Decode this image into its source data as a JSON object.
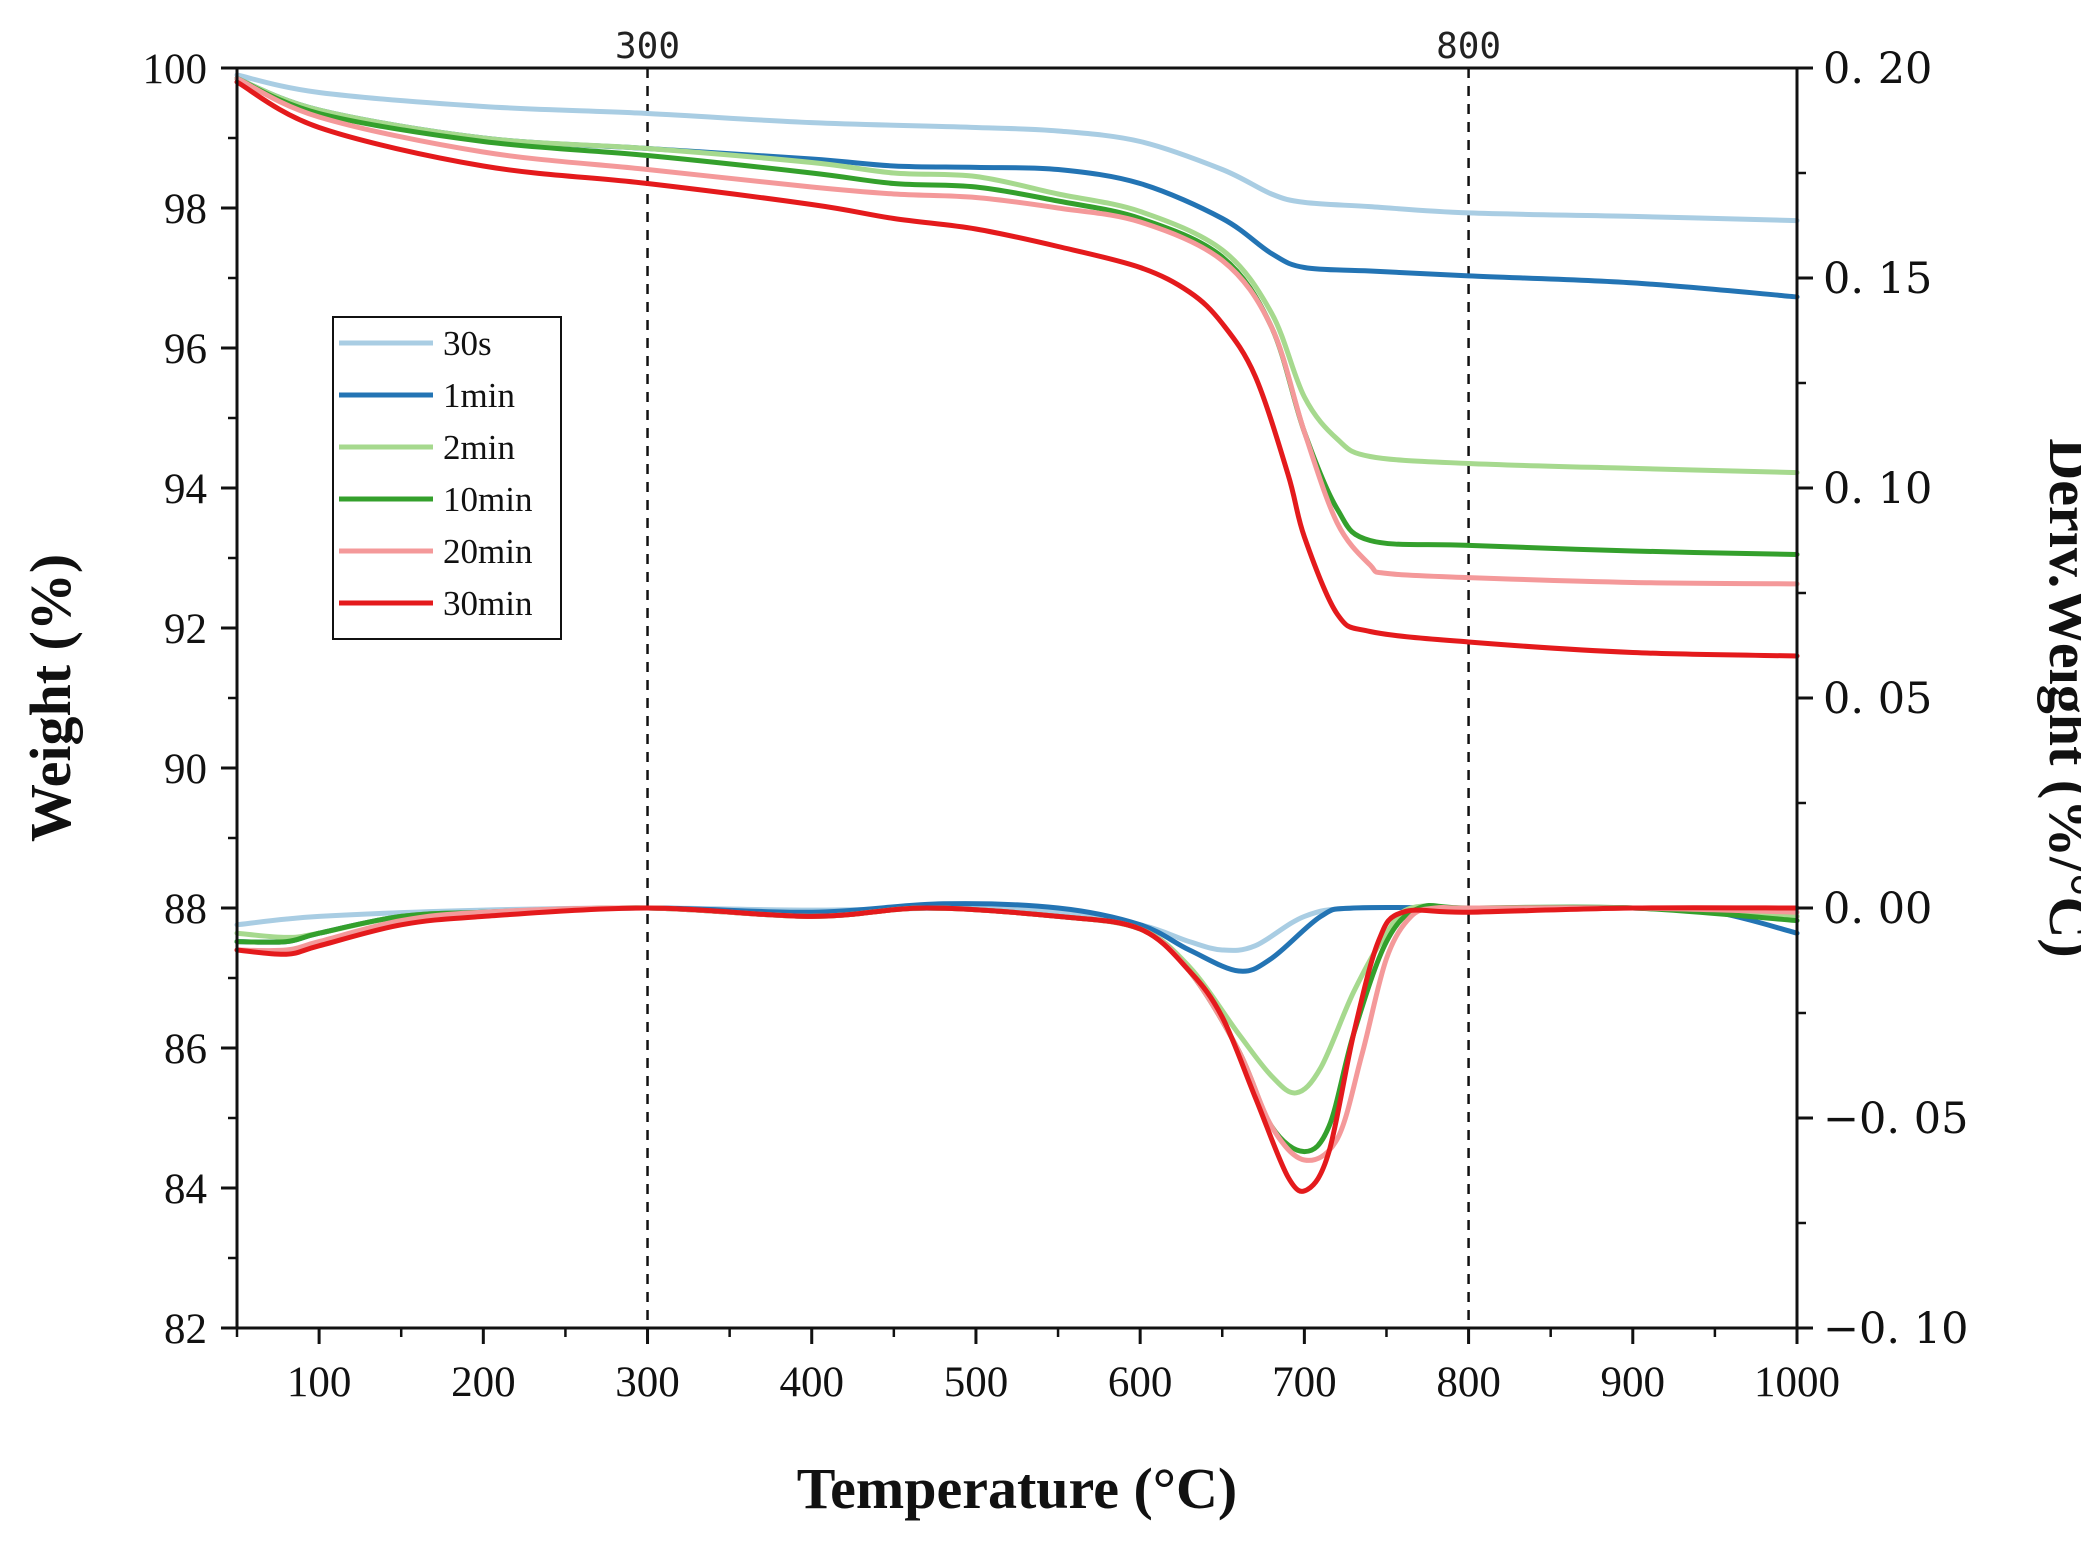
{
  "chart_data": {
    "type": "line",
    "title": "",
    "xlabel": "Temperature (°C)",
    "ylabel": "Weight (%)",
    "y2label": "Deriv.Weight (%/°C)",
    "xlim": [
      50,
      1000
    ],
    "ylim": [
      82,
      100
    ],
    "y2lim": [
      -0.1,
      0.2
    ],
    "x_ticks": [
      100,
      200,
      300,
      400,
      500,
      600,
      700,
      800,
      900,
      1000
    ],
    "x_tick_labels": [
      "100",
      "200",
      "300",
      "400",
      "500",
      "600",
      "700",
      "800",
      "900",
      "1000"
    ],
    "y_ticks": [
      82,
      84,
      86,
      88,
      90,
      92,
      94,
      96,
      98,
      100
    ],
    "y_tick_labels": [
      "82",
      "84",
      "86",
      "88",
      "90",
      "92",
      "94",
      "96",
      "98",
      "100"
    ],
    "y2_ticks": [
      -0.1,
      -0.05,
      0.0,
      0.05,
      0.1,
      0.15,
      0.2
    ],
    "y2_tick_labels": [
      "−0. 10",
      "−0. 05",
      "0. 00",
      "0. 05",
      "0. 10",
      "0. 15",
      "0. 20"
    ],
    "reference_lines": [
      {
        "x": 300,
        "label": "300",
        "style": "dashed"
      },
      {
        "x": 800,
        "label": "800",
        "style": "dashed"
      }
    ],
    "legend": {
      "position": "upper-left",
      "entries": [
        "30s",
        "1min",
        "2min",
        "10min",
        "20min",
        "30min"
      ]
    },
    "series": [
      {
        "name": "30s",
        "color": "#a9cde3",
        "weight": {
          "x": [
            50,
            100,
            200,
            300,
            400,
            500,
            550,
            600,
            650,
            680,
            700,
            740,
            800,
            900,
            1000
          ],
          "y": [
            99.9,
            99.65,
            99.45,
            99.35,
            99.22,
            99.15,
            99.1,
            98.95,
            98.55,
            98.2,
            98.08,
            98.02,
            97.93,
            97.88,
            97.82
          ]
        },
        "deriv": {
          "x": [
            50,
            100,
            200,
            300,
            400,
            500,
            550,
            600,
            630,
            650,
            670,
            700,
            730,
            800,
            900,
            1000
          ],
          "y": [
            -0.004,
            -0.002,
            -0.0005,
            0.0,
            -0.0005,
            0.0,
            -0.001,
            -0.004,
            -0.008,
            -0.01,
            -0.009,
            -0.002,
            0.0,
            0.0,
            0.0,
            -0.002
          ]
        }
      },
      {
        "name": "1min",
        "color": "#2374b4",
        "weight": {
          "x": [
            50,
            100,
            200,
            300,
            400,
            450,
            500,
            550,
            600,
            650,
            680,
            700,
            740,
            800,
            900,
            1000
          ],
          "y": [
            99.85,
            99.4,
            99.0,
            98.85,
            98.7,
            98.6,
            98.58,
            98.55,
            98.35,
            97.85,
            97.35,
            97.15,
            97.1,
            97.03,
            96.93,
            96.73
          ]
        },
        "deriv": {
          "x": [
            50,
            80,
            100,
            150,
            200,
            300,
            400,
            480,
            550,
            600,
            630,
            660,
            680,
            710,
            730,
            800,
            900,
            950,
            1000
          ],
          "y": [
            -0.008,
            -0.008,
            -0.006,
            -0.002,
            -0.001,
            0.0,
            -0.001,
            0.001,
            0.0,
            -0.004,
            -0.01,
            -0.015,
            -0.012,
            -0.002,
            0.0,
            0.0,
            0.0,
            -0.001,
            -0.006
          ]
        }
      },
      {
        "name": "2min",
        "color": "#a6d98e",
        "weight": {
          "x": [
            50,
            100,
            200,
            300,
            400,
            450,
            500,
            550,
            600,
            650,
            680,
            700,
            720,
            740,
            800,
            900,
            1000
          ],
          "y": [
            99.85,
            99.4,
            99.0,
            98.85,
            98.65,
            98.5,
            98.45,
            98.2,
            97.95,
            97.4,
            96.5,
            95.3,
            94.7,
            94.45,
            94.35,
            94.28,
            94.22
          ]
        },
        "deriv": {
          "x": [
            50,
            80,
            100,
            150,
            200,
            300,
            400,
            470,
            550,
            600,
            630,
            660,
            680,
            695,
            710,
            730,
            750,
            765,
            800,
            900,
            1000
          ],
          "y": [
            -0.006,
            -0.007,
            -0.006,
            -0.002,
            -0.001,
            0.0,
            -0.002,
            0.0,
            -0.002,
            -0.005,
            -0.014,
            -0.03,
            -0.04,
            -0.044,
            -0.038,
            -0.02,
            -0.006,
            0.0,
            0.0,
            0.0,
            -0.002
          ]
        }
      },
      {
        "name": "10min",
        "color": "#34a02c",
        "weight": {
          "x": [
            50,
            100,
            200,
            300,
            400,
            450,
            500,
            550,
            600,
            650,
            680,
            700,
            720,
            740,
            800,
            900,
            1000
          ],
          "y": [
            99.85,
            99.35,
            98.95,
            98.75,
            98.5,
            98.35,
            98.3,
            98.1,
            97.85,
            97.3,
            96.3,
            94.8,
            93.7,
            93.25,
            93.18,
            93.1,
            93.05
          ]
        },
        "deriv": {
          "x": [
            50,
            80,
            100,
            150,
            200,
            300,
            400,
            470,
            550,
            600,
            630,
            660,
            680,
            700,
            715,
            730,
            750,
            770,
            800,
            900,
            1000
          ],
          "y": [
            -0.008,
            -0.008,
            -0.006,
            -0.002,
            -0.001,
            0.0,
            -0.002,
            0.0,
            -0.002,
            -0.005,
            -0.015,
            -0.034,
            -0.052,
            -0.058,
            -0.052,
            -0.03,
            -0.008,
            0.0,
            0.0,
            0.0,
            -0.003
          ]
        }
      },
      {
        "name": "20min",
        "color": "#f4999a",
        "weight": {
          "x": [
            50,
            100,
            200,
            300,
            400,
            450,
            500,
            550,
            600,
            650,
            680,
            700,
            720,
            740,
            750,
            800,
            900,
            1000
          ],
          "y": [
            99.85,
            99.3,
            98.8,
            98.55,
            98.3,
            98.2,
            98.15,
            98.0,
            97.8,
            97.25,
            96.3,
            94.8,
            93.5,
            92.9,
            92.78,
            92.72,
            92.65,
            92.63
          ]
        },
        "deriv": {
          "x": [
            50,
            80,
            100,
            150,
            200,
            300,
            400,
            470,
            550,
            600,
            630,
            660,
            680,
            700,
            720,
            735,
            750,
            765,
            780,
            800,
            900,
            1000
          ],
          "y": [
            -0.01,
            -0.01,
            -0.008,
            -0.003,
            -0.001,
            0.0,
            -0.002,
            0.0,
            -0.002,
            -0.005,
            -0.015,
            -0.034,
            -0.052,
            -0.06,
            -0.055,
            -0.035,
            -0.012,
            -0.002,
            0.0,
            0.0,
            0.0,
            -0.001
          ]
        }
      },
      {
        "name": "30min",
        "color": "#e41a1c",
        "weight": {
          "x": [
            50,
            100,
            200,
            300,
            400,
            450,
            500,
            550,
            600,
            630,
            650,
            670,
            690,
            700,
            720,
            740,
            800,
            900,
            1000
          ],
          "y": [
            99.8,
            99.15,
            98.6,
            98.35,
            98.05,
            97.85,
            97.7,
            97.45,
            97.15,
            96.8,
            96.35,
            95.6,
            94.2,
            93.3,
            92.2,
            91.95,
            91.8,
            91.65,
            91.6
          ]
        },
        "deriv": {
          "x": [
            50,
            80,
            100,
            150,
            200,
            300,
            400,
            470,
            550,
            600,
            630,
            650,
            670,
            690,
            702,
            715,
            730,
            745,
            760,
            800,
            900,
            1000
          ],
          "y": [
            -0.01,
            -0.011,
            -0.009,
            -0.004,
            -0.002,
            0.0,
            -0.002,
            0.0,
            -0.002,
            -0.005,
            -0.015,
            -0.026,
            -0.045,
            -0.064,
            -0.067,
            -0.058,
            -0.03,
            -0.008,
            -0.001,
            -0.001,
            0.0,
            0.0
          ]
        }
      }
    ]
  }
}
